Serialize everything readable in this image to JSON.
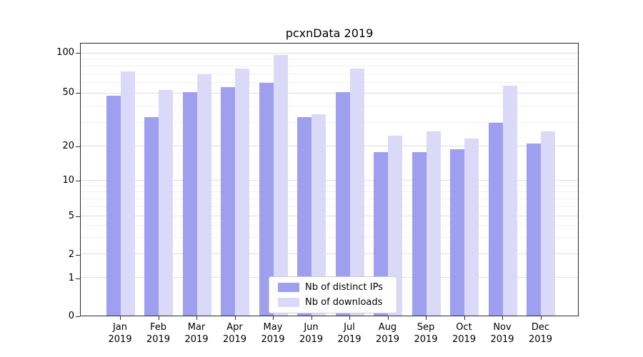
{
  "title": "pcxnData 2019",
  "chart_data": {
    "type": "bar",
    "title": "pcxnData 2019",
    "yscale": "symlog",
    "ylim": [
      0,
      120
    ],
    "yticks": [
      0,
      1,
      2,
      5,
      10,
      20,
      50,
      100
    ],
    "grid": true,
    "legend_position": "lower center",
    "categories": [
      {
        "label": "Jan",
        "sub": "2019"
      },
      {
        "label": "Feb",
        "sub": "2019"
      },
      {
        "label": "Mar",
        "sub": "2019"
      },
      {
        "label": "Apr",
        "sub": "2019"
      },
      {
        "label": "May",
        "sub": "2019"
      },
      {
        "label": "Jun",
        "sub": "2019"
      },
      {
        "label": "Jul",
        "sub": "2019"
      },
      {
        "label": "Aug",
        "sub": "2019"
      },
      {
        "label": "Sep",
        "sub": "2019"
      },
      {
        "label": "Oct",
        "sub": "2019"
      },
      {
        "label": "Nov",
        "sub": "2019"
      },
      {
        "label": "Dec",
        "sub": "2019"
      }
    ],
    "series": [
      {
        "id": "distinct-ips",
        "name": "Nb of distinct IPs",
        "color": "#9f9ff0",
        "values": [
          48,
          33,
          51,
          56,
          60,
          33,
          51,
          18,
          18,
          19,
          30,
          21
        ]
      },
      {
        "id": "downloads",
        "name": "Nb of downloads",
        "color": "#dadaf8",
        "values": [
          73,
          53,
          70,
          77,
          98,
          35,
          77,
          24,
          26,
          23,
          57,
          26
        ]
      }
    ]
  }
}
